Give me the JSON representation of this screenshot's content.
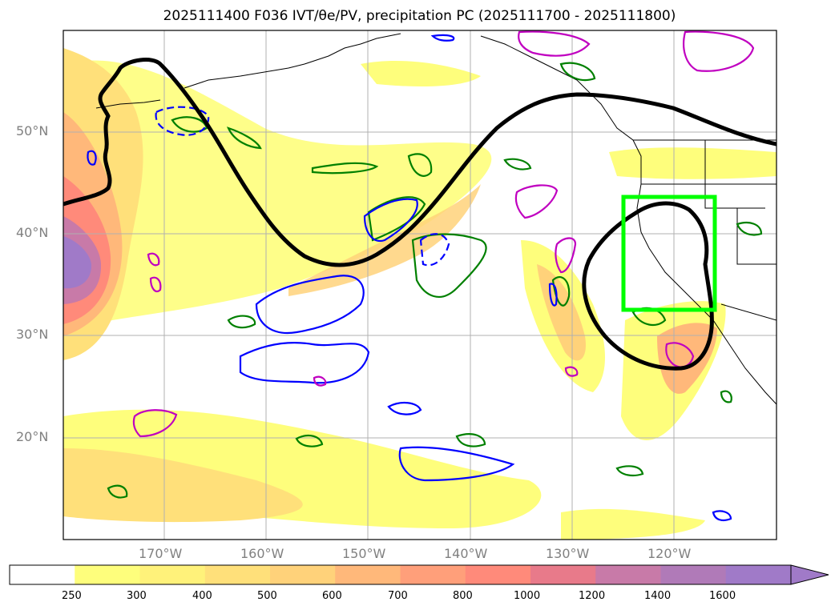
{
  "title": "2025111400 F036 IVT/θe/PV, precipitation PC (2025111700 - 2025111800)",
  "map": {
    "lat_labels": [
      "50°N",
      "40°N",
      "30°N",
      "20°N"
    ],
    "lon_labels": [
      "170°W",
      "160°W",
      "150°W",
      "140°W",
      "130°W",
      "120°W"
    ],
    "highlight_box_color": "#00ff00",
    "pc_contour_color": "#000000",
    "theta_contour_color": "#008000",
    "pv_contour_color_pos": "#0000ff",
    "pv_contour_color_neg": "#c000c0"
  },
  "colorbar": {
    "ticks": [
      "250",
      "300",
      "400",
      "500",
      "600",
      "700",
      "800",
      "1000",
      "1200",
      "1400",
      "1600"
    ],
    "colors": [
      "#ffffff",
      "#fefe7c",
      "#fff27a",
      "#ffe07a",
      "#ffd27a",
      "#ffb87a",
      "#ff9f7a",
      "#ff8a7a",
      "#e87a8a",
      "#c87aa8",
      "#b07ab8",
      "#a07ac8"
    ]
  }
}
